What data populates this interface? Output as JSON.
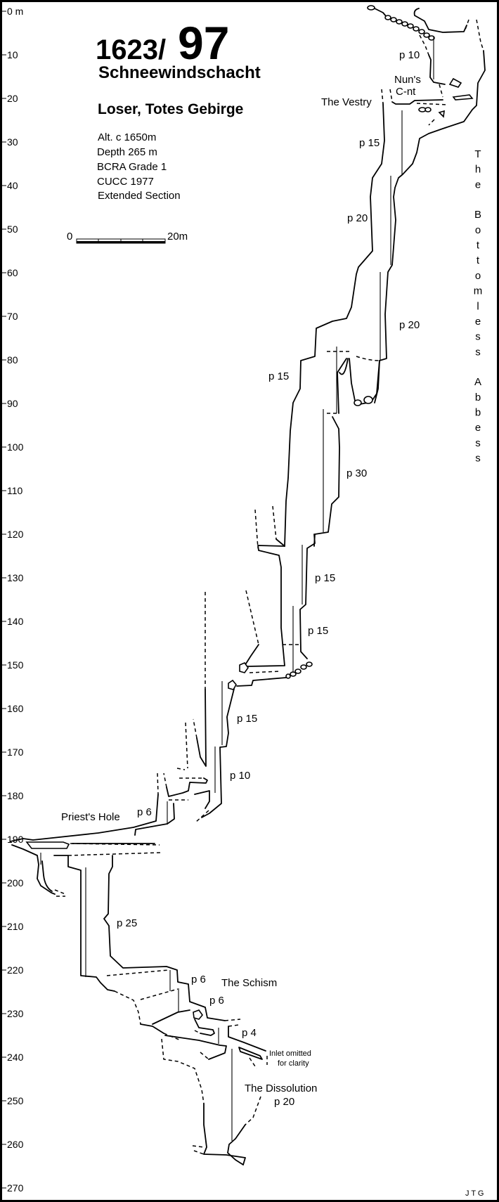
{
  "title": {
    "number_prefix": "1623/",
    "number_main": "97",
    "name": "Schneewindschacht",
    "location": "Loser, Totes Gebirge"
  },
  "info": [
    "Alt. c 1650m",
    "Depth 265 m",
    "BCRA Grade 1",
    "CUCC 1977",
    "Extended Section"
  ],
  "scale_bar": {
    "start_label": "0",
    "end_label": "20m"
  },
  "depth_axis": {
    "unit_label": "0 m",
    "values": [
      0,
      10,
      20,
      30,
      40,
      50,
      60,
      70,
      80,
      90,
      100,
      110,
      120,
      130,
      140,
      150,
      160,
      170,
      180,
      190,
      200,
      210,
      220,
      230,
      240,
      250,
      260,
      270
    ]
  },
  "labels": {
    "p10_top": "p 10",
    "nuns_1": "Nun's",
    "nuns_2": "C-nt",
    "vestry": "The Vestry",
    "p15_a": "p 15",
    "p20_a": "p 20",
    "p20_b": "p 20",
    "p15_b": "p 15",
    "p30": "p 30",
    "p15_c": "p 15",
    "p15_d": "p 15",
    "p15_e": "p 15",
    "p10_b": "p 10",
    "priests_hole": "Priest's Hole",
    "p6_a": "p 6",
    "p25": "p 25",
    "p6_b": "p 6",
    "schism": "The Schism",
    "p6_c": "p 6",
    "p4": "p 4",
    "inlet_1": "Inlet omitted",
    "inlet_2": "for clarity",
    "dissolution": "The Dissolution",
    "p20_c": "p 20"
  },
  "series_name": "The Bottomless Abbess",
  "author": "J T G"
}
